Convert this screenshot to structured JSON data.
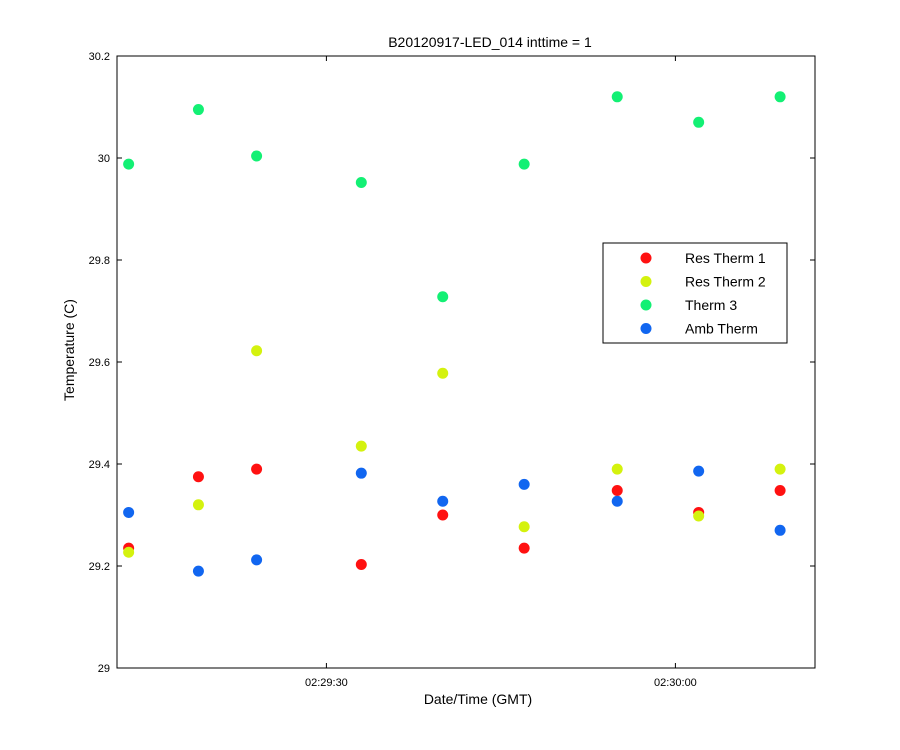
{
  "chart_data": {
    "type": "scatter",
    "title": "B20120917-LED_014 inttime = 1",
    "xlabel": "Date/Time (GMT)",
    "ylabel": "Temperature (C)",
    "xlim": [
      "02:29:12",
      "02:30:12"
    ],
    "ylim": [
      29,
      30.2
    ],
    "grid": false,
    "legend_position": "top-right",
    "x_ticks": [
      "02:29:30",
      "02:30:00"
    ],
    "y_ticks": [
      "29",
      "29.2",
      "29.4",
      "29.6",
      "29.8",
      "30",
      "30.2"
    ],
    "x": [
      "02:29:13",
      "02:29:19",
      "02:29:24",
      "02:29:33",
      "02:29:40",
      "02:29:47",
      "02:29:55",
      "02:30:02",
      "02:30:09"
    ],
    "series": [
      {
        "name": "Res Therm 1",
        "color": "#ff1111",
        "values": [
          29.235,
          29.375,
          29.39,
          29.203,
          29.3,
          29.235,
          29.348,
          29.305,
          29.348
        ]
      },
      {
        "name": "Res Therm 2",
        "color": "#d4f20e",
        "values": [
          29.227,
          29.32,
          29.622,
          29.435,
          29.578,
          29.277,
          29.39,
          29.298,
          29.39
        ]
      },
      {
        "name": "Therm 3",
        "color": "#13f074",
        "values": [
          29.988,
          30.095,
          30.004,
          29.952,
          29.728,
          29.988,
          30.12,
          30.07,
          30.12
        ]
      },
      {
        "name": "Amb Therm",
        "color": "#1166f0",
        "values": [
          29.305,
          29.19,
          29.212,
          29.382,
          29.327,
          29.36,
          29.327,
          29.386,
          29.27
        ]
      }
    ]
  }
}
